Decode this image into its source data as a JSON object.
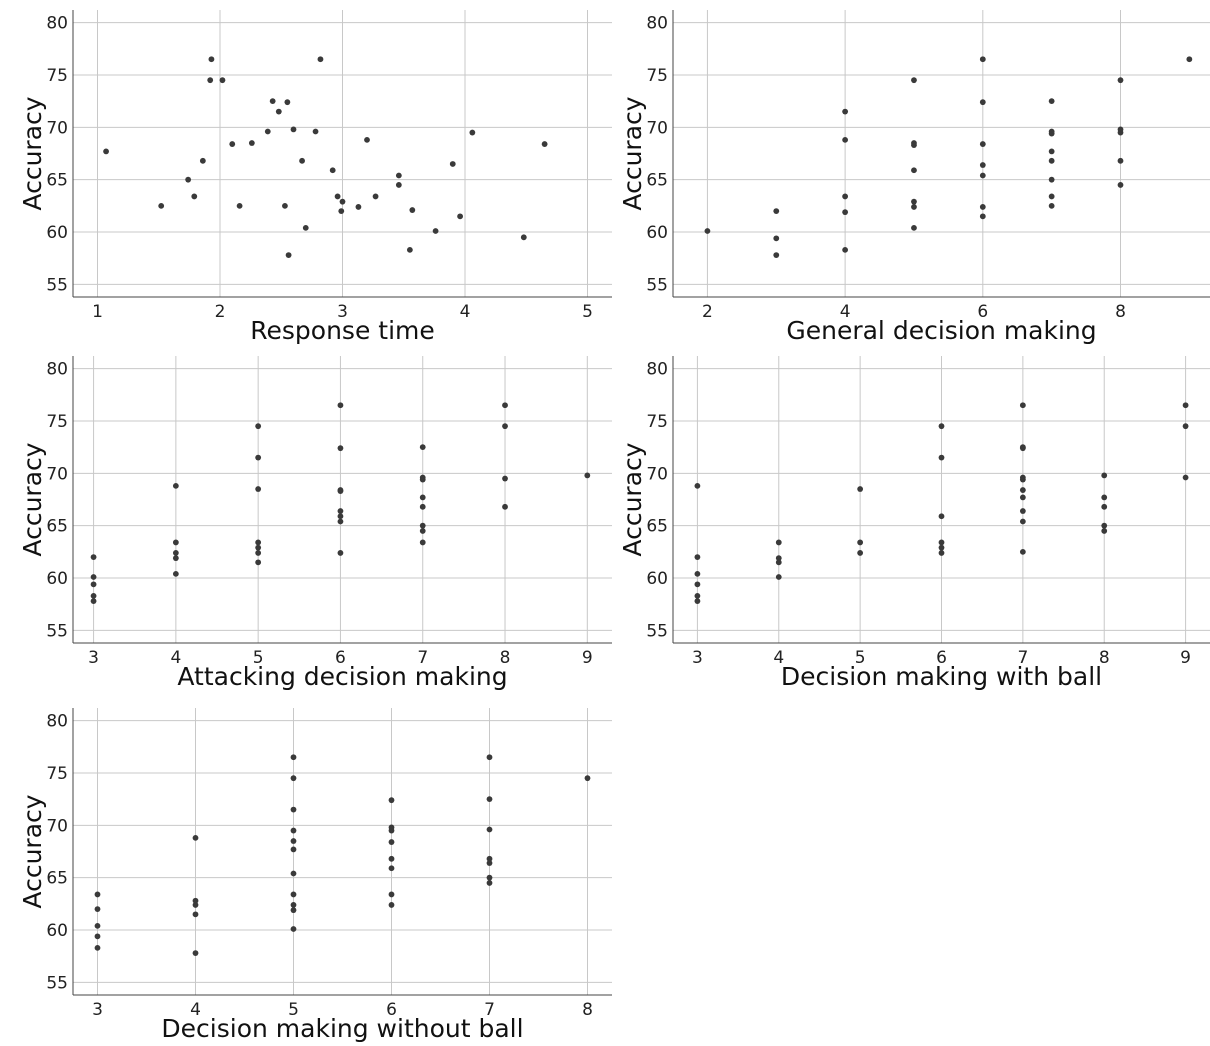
{
  "chart_data": [
    {
      "type": "scatter",
      "xlabel": "Response time",
      "ylabel": "Accuracy",
      "xlim": [
        0.8,
        5.2
      ],
      "ylim": [
        53.8,
        81.2
      ],
      "xticks": [
        1,
        2,
        3,
        4,
        5
      ],
      "yticks": [
        55,
        60,
        65,
        70,
        75,
        80
      ],
      "grid": true,
      "points": [
        [
          1.07,
          67.7
        ],
        [
          1.52,
          62.5
        ],
        [
          1.74,
          65.0
        ],
        [
          1.79,
          63.4
        ],
        [
          1.86,
          66.8
        ],
        [
          1.92,
          74.5
        ],
        [
          1.93,
          76.5
        ],
        [
          2.02,
          74.5
        ],
        [
          2.1,
          68.4
        ],
        [
          2.16,
          62.5
        ],
        [
          2.26,
          68.5
        ],
        [
          2.39,
          69.6
        ],
        [
          2.43,
          72.5
        ],
        [
          2.48,
          71.5
        ],
        [
          2.53,
          62.5
        ],
        [
          2.55,
          72.4
        ],
        [
          2.56,
          57.8
        ],
        [
          2.6,
          69.8
        ],
        [
          2.67,
          66.8
        ],
        [
          2.7,
          60.4
        ],
        [
          2.78,
          69.6
        ],
        [
          2.82,
          76.5
        ],
        [
          2.92,
          65.9
        ],
        [
          2.96,
          63.4
        ],
        [
          2.99,
          62.0
        ],
        [
          3.0,
          62.9
        ],
        [
          3.13,
          62.4
        ],
        [
          3.2,
          68.8
        ],
        [
          3.27,
          63.4
        ],
        [
          3.46,
          64.5
        ],
        [
          3.46,
          65.4
        ],
        [
          3.55,
          58.3
        ],
        [
          3.57,
          62.1
        ],
        [
          3.76,
          60.1
        ],
        [
          3.9,
          66.5
        ],
        [
          3.96,
          61.5
        ],
        [
          4.06,
          69.5
        ],
        [
          4.48,
          59.5
        ],
        [
          4.65,
          68.4
        ]
      ]
    },
    {
      "type": "scatter",
      "xlabel": "General decision making",
      "ylabel": "Accuracy",
      "xlim": [
        1.5,
        9.3
      ],
      "ylim": [
        53.8,
        81.2
      ],
      "xticks": [
        2,
        4,
        6,
        8
      ],
      "yticks": [
        55,
        60,
        65,
        70,
        75,
        80
      ],
      "grid": true,
      "points": [
        [
          2,
          60.1
        ],
        [
          3,
          62.0
        ],
        [
          3,
          59.4
        ],
        [
          3,
          57.8
        ],
        [
          4,
          71.5
        ],
        [
          4,
          68.8
        ],
        [
          4,
          63.4
        ],
        [
          4,
          61.9
        ],
        [
          4,
          58.3
        ],
        [
          5,
          74.5
        ],
        [
          5,
          68.5
        ],
        [
          5,
          68.3
        ],
        [
          5,
          65.9
        ],
        [
          5,
          62.9
        ],
        [
          5,
          62.4
        ],
        [
          5,
          60.4
        ],
        [
          6,
          76.5
        ],
        [
          6,
          72.4
        ],
        [
          6,
          68.4
        ],
        [
          6,
          66.4
        ],
        [
          6,
          65.4
        ],
        [
          6,
          62.4
        ],
        [
          6,
          61.5
        ],
        [
          7,
          72.5
        ],
        [
          7,
          69.6
        ],
        [
          7,
          69.4
        ],
        [
          7,
          67.7
        ],
        [
          7,
          66.8
        ],
        [
          7,
          65.0
        ],
        [
          7,
          63.4
        ],
        [
          7,
          62.5
        ],
        [
          8,
          74.5
        ],
        [
          8,
          69.8
        ],
        [
          8,
          69.5
        ],
        [
          8,
          66.8
        ],
        [
          8,
          64.5
        ],
        [
          9,
          76.5
        ]
      ]
    },
    {
      "type": "scatter",
      "xlabel": "Attacking decision making",
      "ylabel": "Accuracy",
      "xlim": [
        2.75,
        9.3
      ],
      "ylim": [
        53.8,
        81.2
      ],
      "xticks": [
        3,
        4,
        5,
        6,
        7,
        8,
        9
      ],
      "yticks": [
        55,
        60,
        65,
        70,
        75,
        80
      ],
      "grid": true,
      "points": [
        [
          3,
          62.0
        ],
        [
          3,
          60.1
        ],
        [
          3,
          59.4
        ],
        [
          3,
          58.3
        ],
        [
          3,
          57.8
        ],
        [
          4,
          68.8
        ],
        [
          4,
          63.4
        ],
        [
          4,
          62.4
        ],
        [
          4,
          61.9
        ],
        [
          4,
          60.4
        ],
        [
          5,
          74.5
        ],
        [
          5,
          71.5
        ],
        [
          5,
          68.5
        ],
        [
          5,
          63.4
        ],
        [
          5,
          62.9
        ],
        [
          5,
          62.4
        ],
        [
          5,
          61.5
        ],
        [
          6,
          76.5
        ],
        [
          6,
          72.4
        ],
        [
          6,
          68.4
        ],
        [
          6,
          68.3
        ],
        [
          6,
          66.4
        ],
        [
          6,
          65.9
        ],
        [
          6,
          65.4
        ],
        [
          6,
          62.4
        ],
        [
          7,
          72.5
        ],
        [
          7,
          69.6
        ],
        [
          7,
          69.4
        ],
        [
          7,
          67.7
        ],
        [
          7,
          66.8
        ],
        [
          7,
          65.0
        ],
        [
          7,
          64.5
        ],
        [
          7,
          63.4
        ],
        [
          8,
          76.5
        ],
        [
          8,
          74.5
        ],
        [
          8,
          69.5
        ],
        [
          8,
          66.8
        ],
        [
          9,
          69.8
        ]
      ]
    },
    {
      "type": "scatter",
      "xlabel": "Decision making with ball",
      "ylabel": "Accuracy",
      "xlim": [
        2.7,
        9.3
      ],
      "ylim": [
        53.8,
        81.2
      ],
      "xticks": [
        3,
        4,
        5,
        6,
        7,
        8,
        9
      ],
      "yticks": [
        55,
        60,
        65,
        70,
        75,
        80
      ],
      "grid": true,
      "points": [
        [
          3,
          68.8
        ],
        [
          3,
          62.0
        ],
        [
          3,
          60.4
        ],
        [
          3,
          59.4
        ],
        [
          3,
          58.3
        ],
        [
          3,
          57.8
        ],
        [
          4,
          63.4
        ],
        [
          4,
          61.9
        ],
        [
          4,
          61.5
        ],
        [
          4,
          60.1
        ],
        [
          5,
          68.5
        ],
        [
          5,
          63.4
        ],
        [
          5,
          62.4
        ],
        [
          6,
          74.5
        ],
        [
          6,
          71.5
        ],
        [
          6,
          65.9
        ],
        [
          6,
          63.4
        ],
        [
          6,
          62.9
        ],
        [
          6,
          62.4
        ],
        [
          7,
          76.5
        ],
        [
          7,
          72.5
        ],
        [
          7,
          72.4
        ],
        [
          7,
          69.6
        ],
        [
          7,
          69.4
        ],
        [
          7,
          68.4
        ],
        [
          7,
          67.7
        ],
        [
          7,
          66.4
        ],
        [
          7,
          65.4
        ],
        [
          7,
          62.5
        ],
        [
          8,
          69.8
        ],
        [
          8,
          67.7
        ],
        [
          8,
          66.8
        ],
        [
          8,
          65.0
        ],
        [
          8,
          64.5
        ],
        [
          9,
          76.5
        ],
        [
          9,
          74.5
        ],
        [
          9,
          69.6
        ]
      ]
    },
    {
      "type": "scatter",
      "xlabel": "Decision making without ball",
      "ylabel": "Accuracy",
      "xlim": [
        2.75,
        8.25
      ],
      "ylim": [
        53.8,
        81.2
      ],
      "xticks": [
        3,
        4,
        5,
        6,
        7,
        8
      ],
      "yticks": [
        55,
        60,
        65,
        70,
        75,
        80
      ],
      "grid": true,
      "points": [
        [
          3,
          63.4
        ],
        [
          3,
          62.0
        ],
        [
          3,
          60.4
        ],
        [
          3,
          59.4
        ],
        [
          3,
          58.3
        ],
        [
          4,
          68.8
        ],
        [
          4,
          62.8
        ],
        [
          4,
          62.4
        ],
        [
          4,
          61.5
        ],
        [
          4,
          57.8
        ],
        [
          5,
          76.5
        ],
        [
          5,
          74.5
        ],
        [
          5,
          71.5
        ],
        [
          5,
          69.5
        ],
        [
          5,
          68.5
        ],
        [
          5,
          67.7
        ],
        [
          5,
          65.4
        ],
        [
          5,
          63.4
        ],
        [
          5,
          62.4
        ],
        [
          5,
          61.9
        ],
        [
          5,
          60.1
        ],
        [
          6,
          72.4
        ],
        [
          6,
          69.8
        ],
        [
          6,
          69.5
        ],
        [
          6,
          68.4
        ],
        [
          6,
          66.8
        ],
        [
          6,
          65.9
        ],
        [
          6,
          63.4
        ],
        [
          6,
          62.4
        ],
        [
          7,
          76.5
        ],
        [
          7,
          72.5
        ],
        [
          7,
          69.6
        ],
        [
          7,
          66.8
        ],
        [
          7,
          66.4
        ],
        [
          7,
          65.0
        ],
        [
          7,
          64.5
        ],
        [
          8,
          74.5
        ]
      ]
    }
  ]
}
